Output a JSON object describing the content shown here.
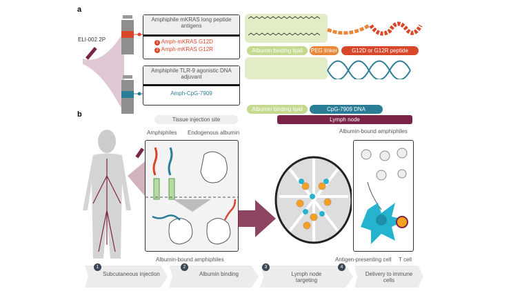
{
  "panel_a": {
    "label": "a",
    "product": "ELI-002 2P",
    "peptide_box": {
      "title": "Amphiphile mKRAS long peptide antigens",
      "items": [
        {
          "num": "1",
          "text": "Amph-mKRAS G12D"
        },
        {
          "num": "2",
          "text": "Amph-mKRAS G12R"
        }
      ]
    },
    "dna_box": {
      "title": "Amphiphile TLR-9 agonistic DNA adjuvant",
      "item": "Amph-CpG-7909"
    },
    "peptide_parts": [
      "Albumin binding lipid",
      "PEG linker",
      "G12D or G12R peptide"
    ],
    "dna_parts": [
      "Albumin binding lipid",
      "CpG-7909 DNA"
    ],
    "colors": {
      "lipid": "#c5d98f",
      "peg": "#e8873a",
      "peptide": "#d9472b",
      "dna": "#2a7d96",
      "vial": "#8f8f8f"
    }
  },
  "panel_b": {
    "label": "b",
    "tissue_site": "Tissue injection site",
    "lymph_node": "Lymph node",
    "amphiphiles": "Amphiphiles",
    "endogenous_albumin": "Endogenous albumin",
    "albumin_bound_bottom": "Albumin-bound amphiphiles",
    "albumin_bound_top": "Albumin-bound amphiphiles",
    "apc": "Antigen-presenting cell",
    "t_cell": "T cell",
    "steps": [
      {
        "num": "1",
        "text": "Subcutaneous injection"
      },
      {
        "num": "2",
        "text": "Albumin binding"
      },
      {
        "num": "3",
        "text": "Lymph node targeting"
      },
      {
        "num": "4",
        "text": "Delivery to immune cells"
      }
    ],
    "colors": {
      "lymph": "#7a2447",
      "apc": "#25b3cf",
      "tcell": "#f4a020"
    }
  }
}
